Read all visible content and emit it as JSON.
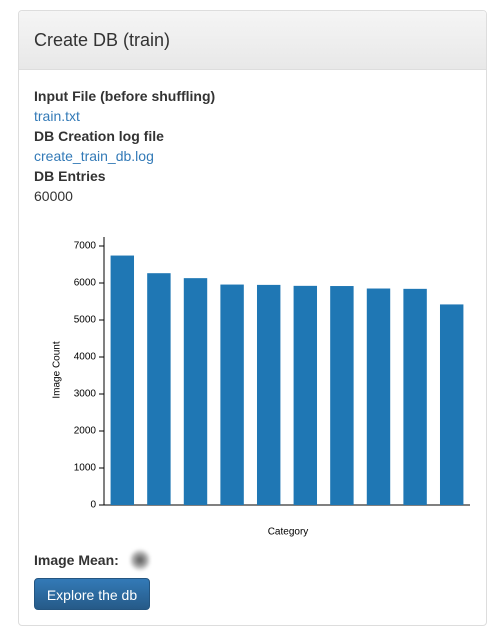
{
  "panel": {
    "title": "Create DB (train)",
    "fields": [
      {
        "label": "Input File (before shuffling)",
        "value": "train.txt"
      },
      {
        "label": "DB Creation log file",
        "value": "create_train_db.log"
      },
      {
        "label": "DB Entries",
        "value": "60000"
      }
    ],
    "image_mean_label": "Image Mean:",
    "button": "Explore the db"
  },
  "chart_data": {
    "type": "bar",
    "categories": [
      null,
      null,
      null,
      null,
      null,
      null,
      null,
      null,
      null,
      null
    ],
    "values": [
      6742,
      6265,
      6131,
      5958,
      5949,
      5923,
      5918,
      5851,
      5842,
      5421
    ],
    "color": "#1f77b4",
    "xlabel": "Category",
    "ylabel": "Image Count",
    "ylim": [
      0,
      7000
    ],
    "yticks": [
      0,
      1000,
      2000,
      3000,
      4000,
      5000,
      6000,
      7000
    ],
    "grid": false
  }
}
